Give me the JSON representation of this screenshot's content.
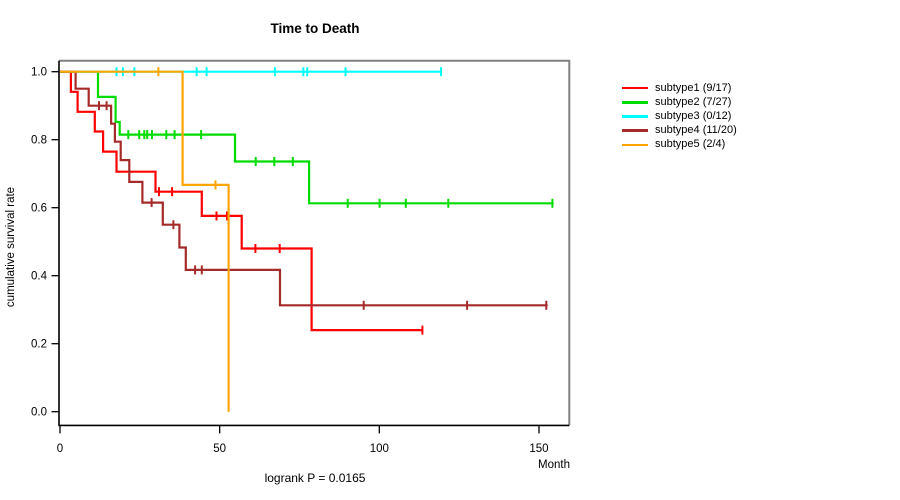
{
  "chart": {
    "title": "Time to Death",
    "ylabel": "cumulative survival rate",
    "xlabel": "Month",
    "annotation": "logrank P = 0.0165"
  },
  "legend": {
    "items": [
      {
        "label": "subtype1 (9/17)",
        "color": "#FF0000"
      },
      {
        "label": "subtype2 (7/27)",
        "color": "#00DC00"
      },
      {
        "label": "subtype3 (0/12)",
        "color": "#00FFFF"
      },
      {
        "label": "subtype4 (11/20)",
        "color": "#A52A2A"
      },
      {
        "label": "subtype5 (2/4)",
        "color": "#FFA500"
      }
    ]
  },
  "chart_data": {
    "type": "line",
    "variant": "kaplan-meier-step",
    "title": "Time to Death",
    "xlabel": "Month",
    "ylabel": "cumulative survival rate",
    "annotation": "logrank P = 0.0165",
    "xlim": [
      0,
      160
    ],
    "ylim": [
      0.0,
      1.0
    ],
    "xticks": [
      0,
      50,
      100,
      150
    ],
    "xtick_labels": [
      "0",
      "50",
      "100",
      "150"
    ],
    "yticks": [
      1.0,
      0.8,
      0.6,
      0.4,
      0.2,
      0.0
    ],
    "ytick_labels": [
      "1.0",
      "0.8",
      "0.6",
      "0.4",
      "0.2",
      "0.0"
    ],
    "grid": false,
    "legend_position": "right-outside",
    "series": [
      {
        "name": "subtype1 (9/17)",
        "color": "#FF0000",
        "start_value": 1.0,
        "end": 113.7,
        "steps": [
          [
            3.4,
            0.941
          ],
          [
            5.5,
            0.882
          ],
          [
            10.9,
            0.824
          ],
          [
            13.5,
            0.765
          ],
          [
            17.7,
            0.706
          ],
          [
            29.9,
            0.647
          ],
          [
            44.4,
            0.576
          ],
          [
            56.9,
            0.48
          ],
          [
            78.8,
            0.24
          ]
        ],
        "censors": [
          [
            31.0,
            0.647
          ],
          [
            35.1,
            0.647
          ],
          [
            49.0,
            0.576
          ],
          [
            52.3,
            0.576
          ],
          [
            61.2,
            0.48
          ],
          [
            68.8,
            0.48
          ],
          [
            113.5,
            0.24
          ]
        ]
      },
      {
        "name": "subtype2 (7/27)",
        "color": "#00DC00",
        "start_value": 1.0,
        "end": 154.6,
        "steps": [
          [
            11.9,
            0.926
          ],
          [
            17.4,
            0.852
          ],
          [
            18.7,
            0.815
          ],
          [
            54.8,
            0.736
          ],
          [
            78.0,
            0.613
          ]
        ],
        "censors": [
          [
            21.4,
            0.815
          ],
          [
            24.8,
            0.815
          ],
          [
            26.4,
            0.815
          ],
          [
            27.3,
            0.815
          ],
          [
            28.8,
            0.815
          ],
          [
            33.3,
            0.815
          ],
          [
            35.9,
            0.815
          ],
          [
            44.2,
            0.815
          ],
          [
            61.3,
            0.736
          ],
          [
            67.1,
            0.736
          ],
          [
            72.9,
            0.736
          ],
          [
            90.1,
            0.613
          ],
          [
            100.1,
            0.613
          ],
          [
            108.3,
            0.613
          ],
          [
            121.6,
            0.613
          ],
          [
            154.2,
            0.613
          ]
        ]
      },
      {
        "name": "subtype3 (0/12)",
        "color": "#00FFFF",
        "start_value": 1.0,
        "end": 119.6,
        "steps": [],
        "censors": [
          [
            17.7,
            1.0
          ],
          [
            19.7,
            1.0
          ],
          [
            23.3,
            1.0
          ],
          [
            42.8,
            1.0
          ],
          [
            45.9,
            1.0
          ],
          [
            67.3,
            1.0
          ],
          [
            76.2,
            1.0
          ],
          [
            77.4,
            1.0
          ],
          [
            89.4,
            1.0
          ],
          [
            119.3,
            1.0
          ]
        ]
      },
      {
        "name": "subtype4 (11/20)",
        "color": "#A52A2A",
        "start_value": 1.0,
        "end": 152.7,
        "steps": [
          [
            4.9,
            0.95
          ],
          [
            9.0,
            0.9
          ],
          [
            16.0,
            0.847
          ],
          [
            17.2,
            0.794
          ],
          [
            19.0,
            0.74
          ],
          [
            21.7,
            0.676
          ],
          [
            25.8,
            0.615
          ],
          [
            32.2,
            0.55
          ],
          [
            37.4,
            0.483
          ],
          [
            39.4,
            0.417
          ],
          [
            68.9,
            0.313
          ]
        ],
        "censors": [
          [
            12.2,
            0.9
          ],
          [
            14.6,
            0.9
          ],
          [
            28.7,
            0.615
          ],
          [
            35.5,
            0.55
          ],
          [
            42.3,
            0.417
          ],
          [
            44.4,
            0.417
          ],
          [
            95.1,
            0.313
          ],
          [
            127.5,
            0.313
          ],
          [
            152.3,
            0.313
          ]
        ]
      },
      {
        "name": "subtype5 (2/4)",
        "color": "#FFA500",
        "start_value": 1.0,
        "end": 52.8,
        "steps": [
          [
            38.4,
            0.667
          ],
          [
            52.8,
            0.0
          ]
        ],
        "censors": [
          [
            30.8,
            1.0
          ],
          [
            48.7,
            0.667
          ]
        ]
      }
    ]
  }
}
